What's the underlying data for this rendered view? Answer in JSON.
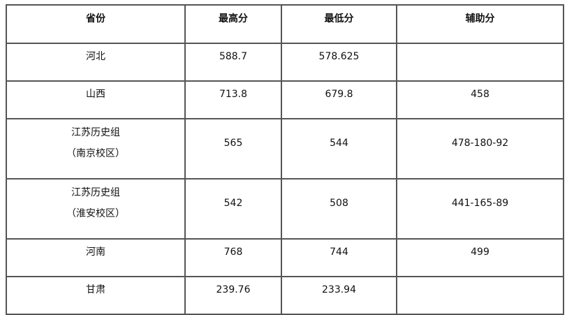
{
  "headers": [
    "省份",
    "最高分",
    "最低分",
    "辅助分"
  ],
  "rows": [
    {
      "province": [
        "河北"
      ],
      "max": "588.7",
      "min": "578.625",
      "aux": ""
    },
    {
      "province": [
        "山西"
      ],
      "max": "713.8",
      "min": "679.8",
      "aux": "458"
    },
    {
      "province": [
        "江苏历史组",
        "（南京校区）"
      ],
      "max": "565",
      "min": "544",
      "aux": "478-180-92"
    },
    {
      "province": [
        "江苏历史组",
        "（淮安校区）"
      ],
      "max": "542",
      "min": "508",
      "aux": "441-165-89"
    },
    {
      "province": [
        "河南"
      ],
      "max": "768",
      "min": "744",
      "aux": "499"
    },
    {
      "province": [
        "甘肃"
      ],
      "max": "239.76",
      "min": "233.94",
      "aux": ""
    }
  ]
}
